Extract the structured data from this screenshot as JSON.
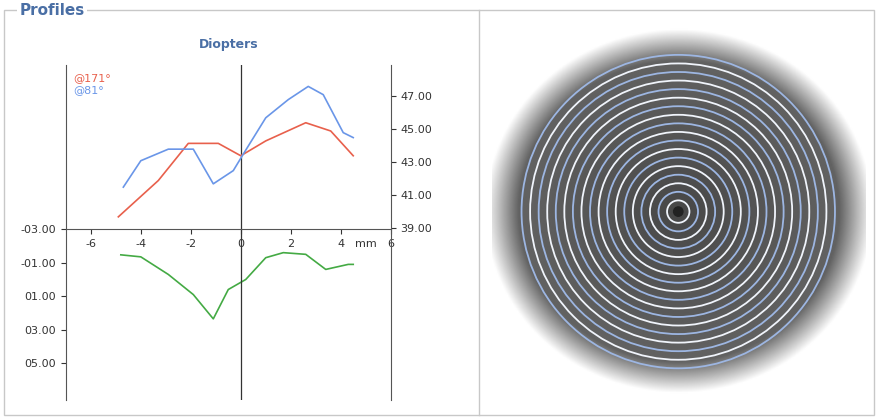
{
  "header": {
    "title": "Profiles"
  },
  "chart_data": {
    "type": "line",
    "title": "Diopters",
    "xlabel": "mm",
    "xlim": [
      -7,
      6
    ],
    "xticks": [
      -6,
      -4,
      -2,
      0,
      2,
      4,
      6
    ],
    "ylim": [
      7.2,
      -12.8
    ],
    "yticks": [
      {
        "value": -3,
        "label": "-03.00"
      },
      {
        "value": -1,
        "label": "-01.00"
      },
      {
        "value": 1,
        "label": "01.00"
      },
      {
        "value": 3,
        "label": "03.00"
      },
      {
        "value": 5,
        "label": "05.00"
      }
    ],
    "y2lim": [
      28.6,
      48.9
    ],
    "y2ticks": [
      {
        "value": 39,
        "label": "39.00"
      },
      {
        "value": 41,
        "label": "41.00"
      },
      {
        "value": 43,
        "label": "43.00"
      },
      {
        "value": 45,
        "label": "45.00"
      },
      {
        "value": 47,
        "label": "47.00"
      }
    ],
    "grid": false,
    "legend": "upper left",
    "series": [
      {
        "name": "@171°",
        "color": "#e8604c",
        "axis": "y2",
        "line_style": "solid",
        "x": [
          -4.9,
          -3.3,
          -2.1,
          -0.9,
          0.0,
          1.0,
          2.6,
          3.6,
          4.5
        ],
        "values": [
          39.7,
          41.9,
          44.15,
          44.15,
          43.4,
          44.3,
          45.4,
          44.9,
          43.4
        ]
      },
      {
        "name": "@81°",
        "color": "#6a96e8",
        "axis": "y2",
        "line_style": "solid",
        "x": [
          -4.7,
          -4.0,
          -2.9,
          -1.9,
          -1.1,
          -0.3,
          0.1,
          1.0,
          1.9,
          2.7,
          3.3,
          4.1,
          4.5
        ],
        "values": [
          41.5,
          43.1,
          43.8,
          43.8,
          41.7,
          42.5,
          43.5,
          45.7,
          46.8,
          47.6,
          47.1,
          44.8,
          44.5
        ]
      },
      {
        "color": "#44aa44",
        "line_style": "solid",
        "x": [
          -4.8,
          -4.0,
          -2.9,
          -1.9,
          -1.1,
          -0.5,
          0.2,
          1.0,
          1.7,
          2.6,
          3.4,
          4.3,
          4.5
        ],
        "values": [
          -1.47,
          -1.35,
          -0.3,
          0.9,
          2.35,
          0.6,
          0.0,
          -1.3,
          -1.6,
          -1.5,
          -0.6,
          -0.9,
          -0.9
        ]
      }
    ]
  }
}
